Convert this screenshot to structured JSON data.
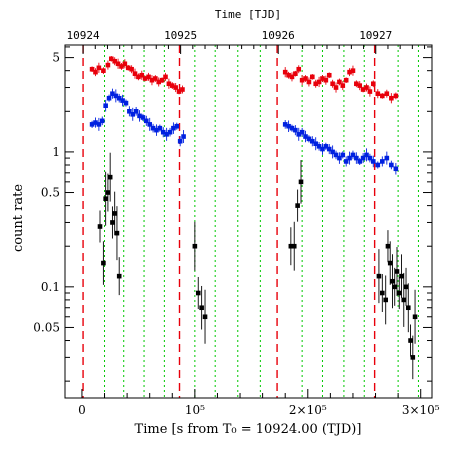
{
  "chart_data": {
    "type": "scatter",
    "title": "",
    "xlabel": "Time [s from T₀ = 10924.00 (TJD)]",
    "ylabel": "count rate",
    "top_xlabel": "Time [TJD]",
    "xlim": [
      -15000,
      310000
    ],
    "ylim": [
      0.015,
      6.2
    ],
    "yscale": "log",
    "grid": false,
    "legend": "none",
    "x_tick_labels": [
      "0",
      "10⁵",
      "2×10⁵",
      "3×10⁵"
    ],
    "y_tick_labels": [
      "0.05",
      "0.1",
      "0.5",
      "1",
      "5"
    ],
    "top_tick_labels": [
      "10924",
      "10925",
      "10926",
      "10927"
    ],
    "red_dashed_lines_x": [
      1000,
      86400,
      172800,
      259200
    ],
    "green_dotted_lines_x": [
      20000,
      37000,
      55000,
      73000,
      100000,
      118000,
      138000,
      158000,
      195000,
      213000,
      232000,
      250000,
      280000,
      298000
    ],
    "colors": {
      "series_1": "#e8000b",
      "series_2": "#0021e0",
      "series_3": "#000000",
      "red_lines": "#e8000b",
      "green_lines": "#00c800"
    },
    "series": [
      {
        "points": [
          {
            "x": 9000,
            "y": 4.1
          },
          {
            "x": 12000,
            "y": 3.9
          },
          {
            "x": 15000,
            "y": 4.2
          },
          {
            "x": 19000,
            "y": 4.0
          },
          {
            "x": 23000,
            "y": 4.4
          },
          {
            "x": 26000,
            "y": 4.9
          },
          {
            "x": 29000,
            "y": 4.7
          },
          {
            "x": 32000,
            "y": 4.5
          },
          {
            "x": 35000,
            "y": 4.3
          },
          {
            "x": 38000,
            "y": 4.5
          },
          {
            "x": 41000,
            "y": 4.2
          },
          {
            "x": 44000,
            "y": 4.1
          },
          {
            "x": 47000,
            "y": 3.8
          },
          {
            "x": 50000,
            "y": 3.6
          },
          {
            "x": 53000,
            "y": 3.7
          },
          {
            "x": 56000,
            "y": 3.5
          },
          {
            "x": 59000,
            "y": 3.6
          },
          {
            "x": 62000,
            "y": 3.4
          },
          {
            "x": 65000,
            "y": 3.5
          },
          {
            "x": 68000,
            "y": 3.3
          },
          {
            "x": 71000,
            "y": 3.4
          },
          {
            "x": 74000,
            "y": 3.6
          },
          {
            "x": 77000,
            "y": 3.2
          },
          {
            "x": 80000,
            "y": 3.1
          },
          {
            "x": 83000,
            "y": 3.0
          },
          {
            "x": 86000,
            "y": 2.8
          },
          {
            "x": 89000,
            "y": 2.9
          },
          {
            "x": 180000,
            "y": 3.9
          },
          {
            "x": 183000,
            "y": 3.7
          },
          {
            "x": 186000,
            "y": 3.6
          },
          {
            "x": 189000,
            "y": 3.8
          },
          {
            "x": 192000,
            "y": 4.1
          },
          {
            "x": 195000,
            "y": 3.4
          },
          {
            "x": 198000,
            "y": 3.5
          },
          {
            "x": 201000,
            "y": 3.3
          },
          {
            "x": 204000,
            "y": 3.6
          },
          {
            "x": 207000,
            "y": 3.2
          },
          {
            "x": 210000,
            "y": 3.3
          },
          {
            "x": 213000,
            "y": 3.5
          },
          {
            "x": 216000,
            "y": 3.4
          },
          {
            "x": 219000,
            "y": 3.7
          },
          {
            "x": 222000,
            "y": 3.2
          },
          {
            "x": 225000,
            "y": 3.0
          },
          {
            "x": 228000,
            "y": 3.3
          },
          {
            "x": 231000,
            "y": 3.1
          },
          {
            "x": 234000,
            "y": 3.4
          },
          {
            "x": 237000,
            "y": 3.9
          },
          {
            "x": 240000,
            "y": 4.0
          },
          {
            "x": 243000,
            "y": 3.2
          },
          {
            "x": 246000,
            "y": 3.1
          },
          {
            "x": 249000,
            "y": 2.9
          },
          {
            "x": 252000,
            "y": 3.0
          },
          {
            "x": 255000,
            "y": 2.8
          },
          {
            "x": 258000,
            "y": 3.2
          },
          {
            "x": 262000,
            "y": 2.7
          },
          {
            "x": 266000,
            "y": 2.6
          },
          {
            "x": 270000,
            "y": 2.7
          },
          {
            "x": 274000,
            "y": 2.5
          },
          {
            "x": 278000,
            "y": 2.6
          }
        ]
      },
      {
        "points": [
          {
            "x": 9000,
            "y": 1.6
          },
          {
            "x": 12000,
            "y": 1.65
          },
          {
            "x": 15000,
            "y": 1.6
          },
          {
            "x": 18000,
            "y": 1.7
          },
          {
            "x": 21000,
            "y": 2.2
          },
          {
            "x": 24000,
            "y": 2.5
          },
          {
            "x": 27000,
            "y": 2.7
          },
          {
            "x": 30000,
            "y": 2.6
          },
          {
            "x": 33000,
            "y": 2.5
          },
          {
            "x": 36000,
            "y": 2.4
          },
          {
            "x": 39000,
            "y": 2.3
          },
          {
            "x": 42000,
            "y": 2.0
          },
          {
            "x": 45000,
            "y": 1.9
          },
          {
            "x": 48000,
            "y": 2.0
          },
          {
            "x": 51000,
            "y": 1.85
          },
          {
            "x": 54000,
            "y": 1.8
          },
          {
            "x": 57000,
            "y": 1.7
          },
          {
            "x": 60000,
            "y": 1.6
          },
          {
            "x": 63000,
            "y": 1.5
          },
          {
            "x": 66000,
            "y": 1.45
          },
          {
            "x": 69000,
            "y": 1.5
          },
          {
            "x": 72000,
            "y": 1.4
          },
          {
            "x": 75000,
            "y": 1.35
          },
          {
            "x": 78000,
            "y": 1.4
          },
          {
            "x": 81000,
            "y": 1.5
          },
          {
            "x": 84000,
            "y": 1.55
          },
          {
            "x": 87000,
            "y": 1.2
          },
          {
            "x": 90000,
            "y": 1.3
          },
          {
            "x": 180000,
            "y": 1.6
          },
          {
            "x": 183000,
            "y": 1.55
          },
          {
            "x": 186000,
            "y": 1.5
          },
          {
            "x": 189000,
            "y": 1.45
          },
          {
            "x": 192000,
            "y": 1.35
          },
          {
            "x": 195000,
            "y": 1.4
          },
          {
            "x": 198000,
            "y": 1.3
          },
          {
            "x": 201000,
            "y": 1.25
          },
          {
            "x": 204000,
            "y": 1.2
          },
          {
            "x": 207000,
            "y": 1.15
          },
          {
            "x": 210000,
            "y": 1.1
          },
          {
            "x": 213000,
            "y": 1.05
          },
          {
            "x": 216000,
            "y": 1.1
          },
          {
            "x": 219000,
            "y": 1.05
          },
          {
            "x": 222000,
            "y": 1.0
          },
          {
            "x": 225000,
            "y": 0.95
          },
          {
            "x": 228000,
            "y": 0.9
          },
          {
            "x": 231000,
            "y": 0.95
          },
          {
            "x": 234000,
            "y": 0.85
          },
          {
            "x": 237000,
            "y": 0.9
          },
          {
            "x": 240000,
            "y": 0.95
          },
          {
            "x": 243000,
            "y": 0.9
          },
          {
            "x": 246000,
            "y": 0.85
          },
          {
            "x": 249000,
            "y": 0.9
          },
          {
            "x": 252000,
            "y": 0.95
          },
          {
            "x": 255000,
            "y": 0.9
          },
          {
            "x": 258000,
            "y": 0.85
          },
          {
            "x": 262000,
            "y": 0.8
          },
          {
            "x": 266000,
            "y": 0.85
          },
          {
            "x": 270000,
            "y": 0.9
          },
          {
            "x": 274000,
            "y": 0.8
          },
          {
            "x": 278000,
            "y": 0.75
          }
        ]
      },
      {
        "points": [
          {
            "x": 16000,
            "y": 0.28
          },
          {
            "x": 19000,
            "y": 0.15
          },
          {
            "x": 21000,
            "y": 0.45
          },
          {
            "x": 23000,
            "y": 0.5
          },
          {
            "x": 25000,
            "y": 0.65
          },
          {
            "x": 27000,
            "y": 0.3
          },
          {
            "x": 29000,
            "y": 0.35
          },
          {
            "x": 31000,
            "y": 0.25
          },
          {
            "x": 33000,
            "y": 0.12
          },
          {
            "x": 100000,
            "y": 0.2
          },
          {
            "x": 103000,
            "y": 0.09
          },
          {
            "x": 106000,
            "y": 0.07
          },
          {
            "x": 109000,
            "y": 0.06
          },
          {
            "x": 185000,
            "y": 0.2
          },
          {
            "x": 188000,
            "y": 0.2
          },
          {
            "x": 191000,
            "y": 0.4
          },
          {
            "x": 194000,
            "y": 0.6
          },
          {
            "x": 263000,
            "y": 0.12
          },
          {
            "x": 266000,
            "y": 0.09
          },
          {
            "x": 269000,
            "y": 0.08
          },
          {
            "x": 271000,
            "y": 0.2
          },
          {
            "x": 273000,
            "y": 0.15
          },
          {
            "x": 275000,
            "y": 0.11
          },
          {
            "x": 277000,
            "y": 0.1
          },
          {
            "x": 279000,
            "y": 0.13
          },
          {
            "x": 281000,
            "y": 0.09
          },
          {
            "x": 283000,
            "y": 0.12
          },
          {
            "x": 285000,
            "y": 0.08
          },
          {
            "x": 287000,
            "y": 0.1
          },
          {
            "x": 289000,
            "y": 0.07
          },
          {
            "x": 291000,
            "y": 0.04
          },
          {
            "x": 293000,
            "y": 0.03
          },
          {
            "x": 295000,
            "y": 0.06
          }
        ]
      }
    ]
  }
}
